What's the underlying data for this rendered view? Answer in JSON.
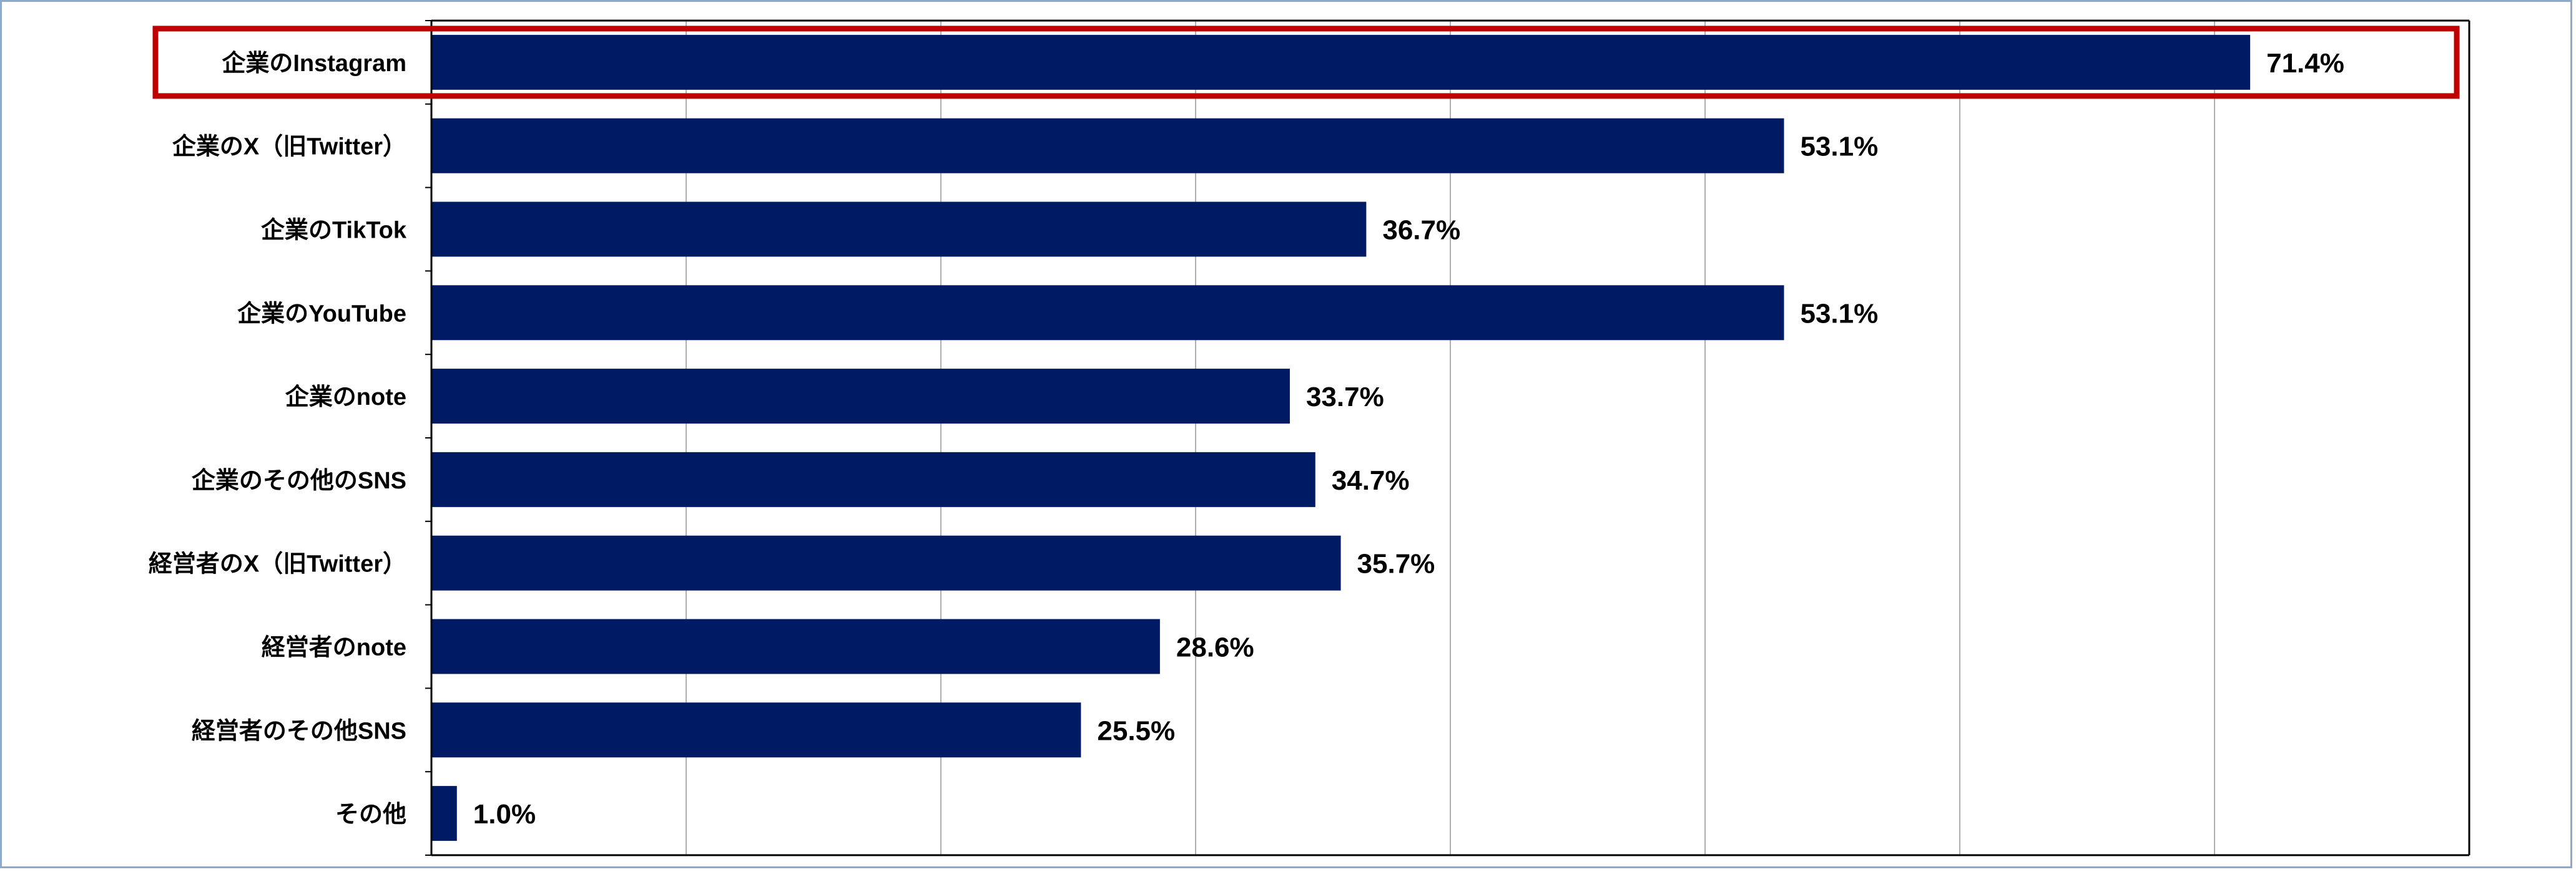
{
  "colors": {
    "bar": "#001a64",
    "highlight": "#c00000",
    "grid": "#b0b0b0",
    "axis": "#000000",
    "frame": "#8faac8"
  },
  "chart_data": {
    "type": "bar",
    "orientation": "horizontal",
    "categories": [
      "企業のInstagram",
      "企業のX（旧Twitter）",
      "企業のTikTok",
      "企業のYouTube",
      "企業のnote",
      "企業のその他のSNS",
      "経営者のX（旧Twitter）",
      "経営者のnote",
      "経営者のその他SNS",
      "その他"
    ],
    "values": [
      71.4,
      53.1,
      36.7,
      53.1,
      33.7,
      34.7,
      35.7,
      28.6,
      25.5,
      1.0
    ],
    "data_labels": [
      "71.4%",
      "53.1%",
      "36.7%",
      "53.1%",
      "33.7%",
      "34.7%",
      "35.7%",
      "28.6%",
      "25.5%",
      "1.0%"
    ],
    "xlim": [
      0,
      80
    ],
    "grid": true,
    "highlighted_category": "企業のInstagram",
    "title": "",
    "xlabel": "",
    "ylabel": ""
  }
}
